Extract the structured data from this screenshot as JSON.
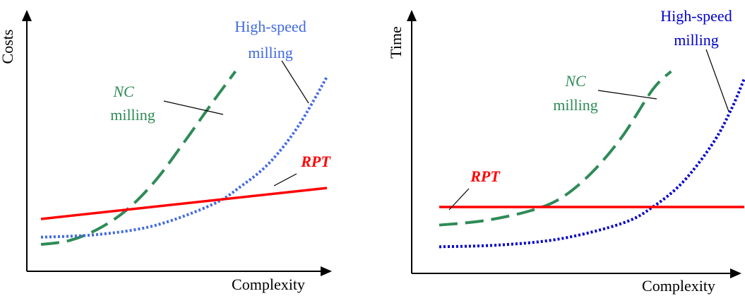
{
  "chart_data": [
    {
      "type": "line",
      "xlabel": "Complexity",
      "ylabel": "Costs",
      "xlim": [
        0,
        10
      ],
      "ylim": [
        0,
        10
      ],
      "grid": false,
      "legend": "none",
      "series": [
        {
          "name": "NC milling",
          "label_lines": [
            "NC",
            "milling"
          ],
          "color": "#2e8b57",
          "style": "dashed",
          "x": [
            0,
            1,
            2,
            3,
            4,
            5,
            6,
            6.8
          ],
          "y": [
            0.5,
            0.72,
            1.35,
            2.4,
            4.0,
            6.1,
            8.3,
            10.0
          ]
        },
        {
          "name": "High-speed milling",
          "label_lines": [
            "High-speed",
            "milling"
          ],
          "color": "#4169e1",
          "style": "dotted",
          "x": [
            0,
            2,
            4,
            6,
            7,
            8,
            9,
            10
          ],
          "y": [
            0.9,
            1.05,
            1.55,
            2.7,
            3.7,
            5.0,
            7.0,
            9.7
          ]
        },
        {
          "name": "RPT",
          "label_lines": [
            "RPT"
          ],
          "color": "#ff0000",
          "style": "solid",
          "x": [
            0,
            10
          ],
          "y": [
            1.9,
            3.6
          ]
        }
      ]
    },
    {
      "type": "line",
      "xlabel": "Complexity",
      "ylabel": "Time",
      "xlim": [
        0,
        10
      ],
      "ylim": [
        0,
        10
      ],
      "grid": false,
      "legend": "none",
      "series": [
        {
          "name": "NC milling",
          "label_lines": [
            "NC",
            "milling"
          ],
          "color": "#2e8b57",
          "style": "dashed",
          "x": [
            0,
            1.5,
            3,
            4,
            5,
            6,
            7,
            7.6
          ],
          "y": [
            1.5,
            1.75,
            2.3,
            3.0,
            4.4,
            6.4,
            9.0,
            10.0
          ]
        },
        {
          "name": "High-speed milling",
          "label_lines": [
            "High-speed",
            "milling"
          ],
          "color": "#0000cd",
          "style": "dotted",
          "x": [
            0,
            2,
            4,
            6,
            7,
            8,
            9,
            9.6,
            10
          ],
          "y": [
            0.3,
            0.4,
            0.75,
            1.6,
            2.5,
            3.9,
            6.1,
            8.0,
            9.6
          ]
        },
        {
          "name": "RPT",
          "label_lines": [
            "RPT"
          ],
          "color": "#ff0000",
          "style": "solid",
          "x": [
            0,
            10
          ],
          "y": [
            2.5,
            2.5
          ]
        }
      ]
    }
  ]
}
